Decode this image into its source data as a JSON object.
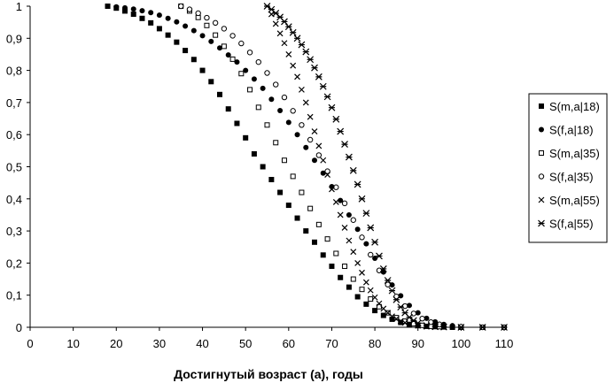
{
  "chart_data": {
    "type": "scatter",
    "title": "",
    "xlabel": "Достигнутый возраст (a), годы",
    "ylabel": "",
    "xlim": [
      0,
      110
    ],
    "ylim": [
      0,
      1
    ],
    "xticks": [
      0,
      10,
      20,
      30,
      40,
      50,
      60,
      70,
      80,
      90,
      100,
      110
    ],
    "yticks": [
      0,
      0.1,
      0.2,
      0.3,
      0.4,
      0.5,
      0.6,
      0.7,
      0.8,
      0.9,
      1
    ],
    "xtick_labels": [
      "0",
      "10",
      "20",
      "30",
      "40",
      "50",
      "60",
      "70",
      "80",
      "90",
      "100",
      "110"
    ],
    "ytick_labels": [
      "0",
      "0,1",
      "0,2",
      "0,3",
      "0,4",
      "0,5",
      "0,6",
      "0,7",
      "0,8",
      "0,9",
      "1"
    ],
    "grid": false,
    "legend_position": "right",
    "series": [
      {
        "name": "S(m,a|18)",
        "marker": "filled-square",
        "x": [
          18,
          20,
          22,
          24,
          26,
          28,
          30,
          32,
          34,
          36,
          38,
          40,
          42,
          44,
          46,
          48,
          50,
          52,
          54,
          56,
          58,
          60,
          62,
          64,
          66,
          68,
          70,
          72,
          74,
          76,
          78,
          80,
          82,
          84,
          86,
          88,
          90,
          92,
          94,
          96,
          98,
          100,
          105,
          110
        ],
        "y": [
          1.0,
          0.994,
          0.985,
          0.975,
          0.962,
          0.948,
          0.93,
          0.91,
          0.888,
          0.862,
          0.834,
          0.8,
          0.765,
          0.725,
          0.68,
          0.635,
          0.59,
          0.54,
          0.5,
          0.46,
          0.42,
          0.38,
          0.34,
          0.3,
          0.265,
          0.225,
          0.19,
          0.155,
          0.125,
          0.095,
          0.072,
          0.052,
          0.037,
          0.025,
          0.015,
          0.009,
          0.005,
          0.003,
          0.002,
          0.001,
          0.0,
          0.0,
          0.0,
          0.0
        ]
      },
      {
        "name": "S(f,a|18)",
        "marker": "filled-circle",
        "x": [
          18,
          20,
          22,
          24,
          26,
          28,
          30,
          32,
          34,
          36,
          38,
          40,
          42,
          44,
          46,
          48,
          50,
          52,
          54,
          56,
          58,
          60,
          62,
          64,
          66,
          68,
          70,
          72,
          74,
          76,
          78,
          80,
          82,
          84,
          86,
          88,
          90,
          92,
          94,
          96,
          98,
          100,
          105,
          110
        ],
        "y": [
          1.0,
          0.998,
          0.995,
          0.991,
          0.986,
          0.98,
          0.972,
          0.962,
          0.951,
          0.938,
          0.924,
          0.908,
          0.89,
          0.87,
          0.848,
          0.826,
          0.8,
          0.773,
          0.744,
          0.71,
          0.675,
          0.638,
          0.6,
          0.56,
          0.52,
          0.48,
          0.438,
          0.395,
          0.35,
          0.305,
          0.26,
          0.215,
          0.172,
          0.132,
          0.098,
          0.068,
          0.045,
          0.028,
          0.017,
          0.009,
          0.005,
          0.002,
          0.0,
          0.0
        ]
      },
      {
        "name": "S(m,a|35)",
        "marker": "open-square",
        "x": [
          35,
          37,
          39,
          41,
          43,
          45,
          47,
          49,
          51,
          53,
          55,
          57,
          59,
          61,
          63,
          65,
          67,
          69,
          71,
          73,
          75,
          77,
          79,
          81,
          83,
          85,
          87,
          89,
          91,
          93,
          95,
          100,
          105,
          110
        ],
        "y": [
          1.0,
          0.985,
          0.965,
          0.94,
          0.91,
          0.875,
          0.835,
          0.79,
          0.74,
          0.685,
          0.63,
          0.575,
          0.52,
          0.47,
          0.42,
          0.37,
          0.32,
          0.275,
          0.23,
          0.19,
          0.15,
          0.118,
          0.088,
          0.064,
          0.045,
          0.03,
          0.019,
          0.011,
          0.006,
          0.003,
          0.002,
          0.0,
          0.0,
          0.0
        ]
      },
      {
        "name": "S(f,a|35)",
        "marker": "open-circle",
        "x": [
          35,
          37,
          39,
          41,
          43,
          45,
          47,
          49,
          51,
          53,
          55,
          57,
          59,
          61,
          63,
          65,
          67,
          69,
          71,
          73,
          75,
          77,
          79,
          81,
          83,
          85,
          87,
          89,
          91,
          93,
          95,
          100,
          105,
          110
        ],
        "y": [
          1.0,
          0.99,
          0.978,
          0.964,
          0.948,
          0.93,
          0.908,
          0.884,
          0.856,
          0.826,
          0.792,
          0.756,
          0.716,
          0.674,
          0.63,
          0.584,
          0.536,
          0.486,
          0.436,
          0.386,
          0.334,
          0.28,
          0.226,
          0.177,
          0.133,
          0.096,
          0.066,
          0.043,
          0.027,
          0.016,
          0.009,
          0.002,
          0.0,
          0.0
        ]
      },
      {
        "name": "S(m,a|55)",
        "marker": "cross",
        "x": [
          55,
          56,
          57,
          58,
          59,
          60,
          61,
          62,
          63,
          64,
          65,
          66,
          67,
          68,
          69,
          70,
          71,
          72,
          73,
          74,
          75,
          76,
          77,
          78,
          79,
          80,
          81,
          82,
          83,
          84,
          85,
          86,
          87,
          88,
          90,
          92,
          94,
          96,
          100,
          105,
          110
        ],
        "y": [
          1.0,
          0.975,
          0.945,
          0.915,
          0.885,
          0.85,
          0.815,
          0.78,
          0.74,
          0.7,
          0.655,
          0.61,
          0.565,
          0.52,
          0.475,
          0.43,
          0.39,
          0.35,
          0.31,
          0.27,
          0.235,
          0.2,
          0.17,
          0.14,
          0.115,
          0.093,
          0.074,
          0.058,
          0.045,
          0.034,
          0.026,
          0.019,
          0.014,
          0.01,
          0.005,
          0.002,
          0.001,
          0.0,
          0.0,
          0.0,
          0.0
        ]
      },
      {
        "name": "S(f,a|55)",
        "marker": "star",
        "x": [
          55,
          56,
          57,
          58,
          59,
          60,
          61,
          62,
          63,
          64,
          65,
          66,
          67,
          68,
          69,
          70,
          71,
          72,
          73,
          74,
          75,
          76,
          77,
          78,
          79,
          80,
          81,
          82,
          83,
          84,
          85,
          86,
          87,
          88,
          89,
          90,
          92,
          94,
          96,
          100,
          105,
          110
        ],
        "y": [
          1.0,
          0.99,
          0.978,
          0.966,
          0.952,
          0.936,
          0.918,
          0.9,
          0.88,
          0.858,
          0.834,
          0.808,
          0.78,
          0.75,
          0.718,
          0.684,
          0.648,
          0.61,
          0.57,
          0.53,
          0.488,
          0.445,
          0.4,
          0.355,
          0.31,
          0.265,
          0.222,
          0.182,
          0.146,
          0.114,
          0.086,
          0.063,
          0.045,
          0.031,
          0.021,
          0.013,
          0.005,
          0.002,
          0.001,
          0.0,
          0.0,
          0.0
        ]
      }
    ]
  }
}
